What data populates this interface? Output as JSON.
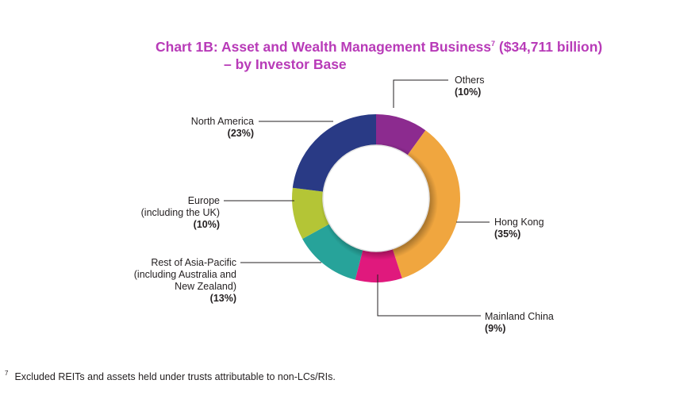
{
  "title": {
    "line1": "Chart 1B: Asset and Wealth Management Business",
    "sup": "7",
    "amount": " ($34,711 billion)",
    "line2": "– by Investor Base"
  },
  "chart_data": {
    "type": "pie",
    "style": "donut",
    "slices": [
      {
        "label": "Others",
        "value": 10,
        "pct": "(10%)",
        "color": "#8c2b8f"
      },
      {
        "label": "Hong Kong",
        "value": 35,
        "pct": "(35%)",
        "color": "#f0a63f"
      },
      {
        "label": "Mainland China",
        "value": 9,
        "pct": "(9%)",
        "color": "#e0197d"
      },
      {
        "label": "Rest of Asia-Pacific (including Australia and New Zealand)",
        "value": 13,
        "pct": "(13%)",
        "color": "#27a39a"
      },
      {
        "label": "Europe (including the UK)",
        "value": 10,
        "pct": "(10%)",
        "color": "#b4c536"
      },
      {
        "label": "North America",
        "value": 23,
        "pct": "(23%)",
        "color": "#293a85"
      }
    ]
  },
  "labels": {
    "others": {
      "name": "Others",
      "pct": "(10%)"
    },
    "hong_kong": {
      "name": "Hong Kong",
      "pct": "(35%)"
    },
    "mainland": {
      "name": "Mainland China",
      "pct": "(9%)"
    },
    "rest_apac": {
      "line1": "Rest of Asia-Pacific",
      "line2": "(including Australia and",
      "line3": "New Zealand)",
      "pct": "(13%)"
    },
    "europe": {
      "line1": "Europe",
      "line2": "(including the UK)",
      "pct": "(10%)"
    },
    "north_america": {
      "name": "North America",
      "pct": "(23%)"
    }
  },
  "footnote": {
    "marker": "7",
    "text": "Excluded REITs and assets held under trusts attributable to non-LCs/RIs."
  }
}
